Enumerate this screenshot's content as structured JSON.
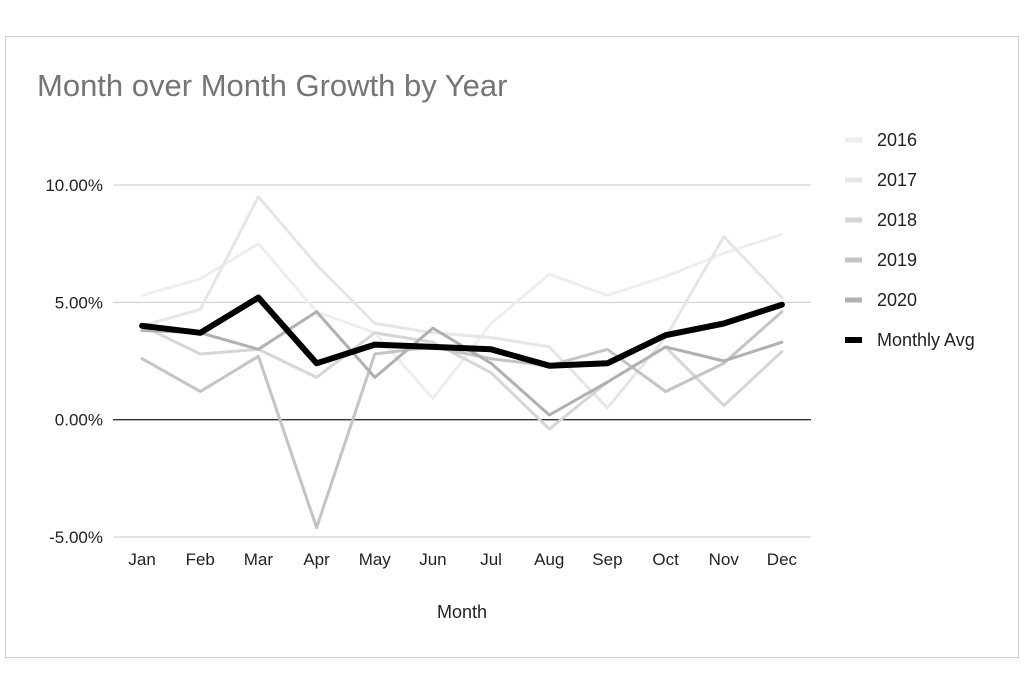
{
  "chart_data": {
    "type": "line",
    "title": "Month over Month Growth by Year",
    "xlabel": "Month",
    "ylabel": "",
    "categories": [
      "Jan",
      "Feb",
      "Mar",
      "Apr",
      "May",
      "Jun",
      "Jul",
      "Aug",
      "Sep",
      "Oct",
      "Nov",
      "Dec"
    ],
    "ylim": [
      -5,
      10
    ],
    "yticks": [
      10,
      5,
      0,
      -5
    ],
    "ytick_labels": [
      "10.00%",
      "5.00%",
      "0.00%",
      "-5.00%"
    ],
    "grid": true,
    "legend_position": "right",
    "series": [
      {
        "name": "2016",
        "color": "#eeeeee",
        "width": 3,
        "values": [
          5.3,
          6.0,
          7.5,
          4.6,
          3.7,
          0.9,
          4.1,
          6.2,
          5.3,
          6.1,
          7.1,
          7.9
        ]
      },
      {
        "name": "2017",
        "color": "#e6e6e6",
        "width": 3,
        "values": [
          4.0,
          4.7,
          9.5,
          6.6,
          4.1,
          3.7,
          3.5,
          3.1,
          0.5,
          3.5,
          7.8,
          5.2
        ]
      },
      {
        "name": "2018",
        "color": "#d6d6d6",
        "width": 3,
        "values": [
          4.0,
          2.8,
          3.0,
          1.8,
          3.7,
          3.3,
          2.0,
          -0.4,
          1.6,
          3.1,
          0.6,
          2.9
        ]
      },
      {
        "name": "2019",
        "color": "#c4c4c4",
        "width": 3,
        "values": [
          2.6,
          1.2,
          2.7,
          -4.6,
          2.8,
          3.1,
          2.6,
          2.3,
          3.0,
          1.2,
          2.4,
          4.6
        ]
      },
      {
        "name": "2020",
        "color": "#b0b0b0",
        "width": 3,
        "values": [
          3.8,
          3.7,
          3.0,
          4.6,
          1.8,
          3.9,
          2.4,
          0.2,
          1.6,
          3.1,
          2.5,
          3.3
        ]
      },
      {
        "name": "Monthly Avg",
        "color": "#000000",
        "width": 6,
        "values": [
          4.0,
          3.7,
          5.2,
          2.4,
          3.2,
          3.1,
          3.0,
          2.3,
          2.4,
          3.6,
          4.1,
          4.9
        ]
      }
    ]
  }
}
